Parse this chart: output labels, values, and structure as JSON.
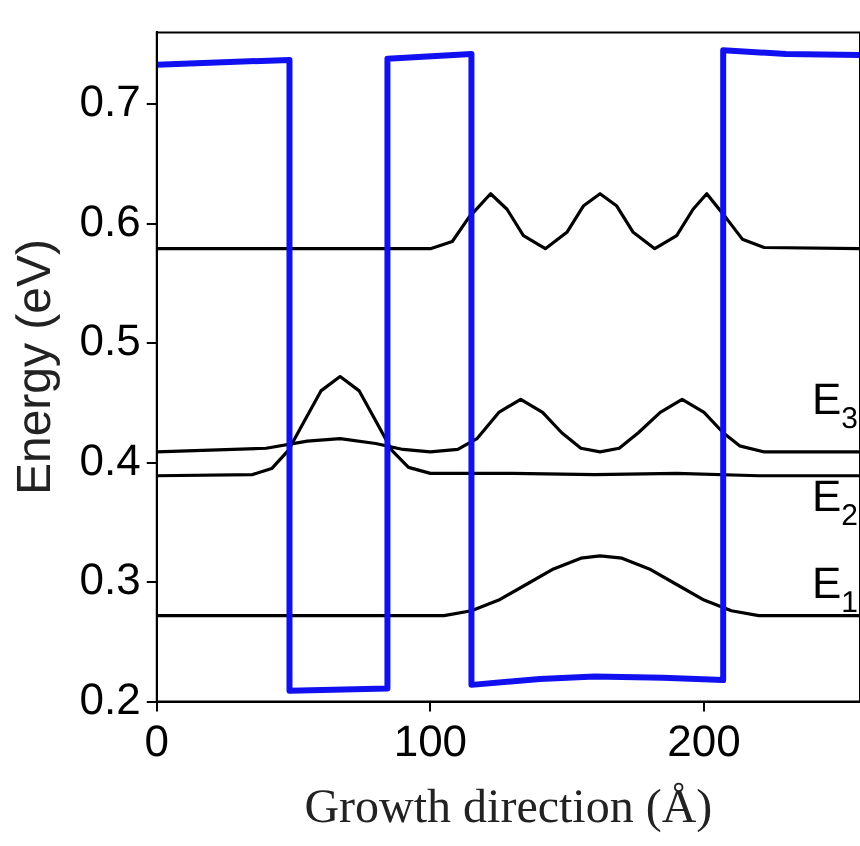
{
  "chart_data": {
    "type": "line",
    "xlabel": "Growth direction (Å)",
    "ylabel": "Energy (eV)",
    "xlim": [
      0,
      257
    ],
    "ylim": [
      0.2,
      0.76
    ],
    "xticks": [
      0,
      100,
      200
    ],
    "yticks": [
      0.2,
      0.3,
      0.4,
      0.5,
      0.6,
      0.7
    ],
    "grid": false,
    "legend": false,
    "marker": "none",
    "line_style": "solid",
    "series": [
      {
        "color": "#1010f0",
        "x": [
          0,
          48.5,
          48.5,
          84.3,
          84.3,
          115,
          115,
          140,
          160,
          185,
          207,
          207,
          230,
          257
        ],
        "values": [
          0.733,
          0.737,
          0.209,
          0.211,
          0.738,
          0.742,
          0.214,
          0.219,
          0.221,
          0.22,
          0.218,
          0.745,
          0.742,
          0.741
        ]
      },
      {
        "color": "#000000",
        "x": [
          0,
          105,
          115,
          125,
          135,
          145,
          155,
          162,
          170,
          180,
          190,
          200,
          210,
          220,
          257
        ],
        "values": [
          0.272,
          0.272,
          0.276,
          0.285,
          0.298,
          0.311,
          0.32,
          0.322,
          0.32,
          0.311,
          0.298,
          0.285,
          0.276,
          0.272,
          0.272
        ]
      },
      {
        "color": "#000000",
        "x": [
          0,
          35,
          42,
          48,
          54,
          60,
          67,
          74,
          80,
          86,
          92,
          100,
          130,
          160,
          190,
          220,
          257
        ],
        "values": [
          0.389,
          0.39,
          0.395,
          0.41,
          0.435,
          0.46,
          0.472,
          0.46,
          0.435,
          0.41,
          0.396,
          0.391,
          0.391,
          0.39,
          0.391,
          0.389,
          0.389
        ]
      },
      {
        "color": "#000000",
        "x": [
          0,
          40,
          55,
          67,
          80,
          90,
          100,
          110,
          117,
          125,
          133,
          141,
          148,
          155,
          162,
          169,
          176,
          184,
          192,
          200,
          207,
          213,
          222,
          257
        ],
        "values": [
          0.409,
          0.412,
          0.418,
          0.42,
          0.416,
          0.411,
          0.409,
          0.411,
          0.42,
          0.442,
          0.453,
          0.442,
          0.425,
          0.412,
          0.409,
          0.412,
          0.425,
          0.442,
          0.453,
          0.442,
          0.425,
          0.414,
          0.409,
          0.409
        ]
      },
      {
        "color": "#000000",
        "x": [
          0,
          100,
          108,
          114,
          122,
          128,
          134,
          142,
          150,
          156,
          162,
          168,
          174,
          182,
          190,
          196,
          201,
          208,
          214,
          222,
          257
        ],
        "values": [
          0.579,
          0.579,
          0.585,
          0.605,
          0.625,
          0.612,
          0.59,
          0.579,
          0.593,
          0.615,
          0.625,
          0.615,
          0.593,
          0.579,
          0.59,
          0.612,
          0.625,
          0.605,
          0.587,
          0.58,
          0.579
        ]
      }
    ],
    "annotations": [
      "E$_{3}$",
      "E$_{2}$",
      "E$_{1}$"
    ]
  }
}
